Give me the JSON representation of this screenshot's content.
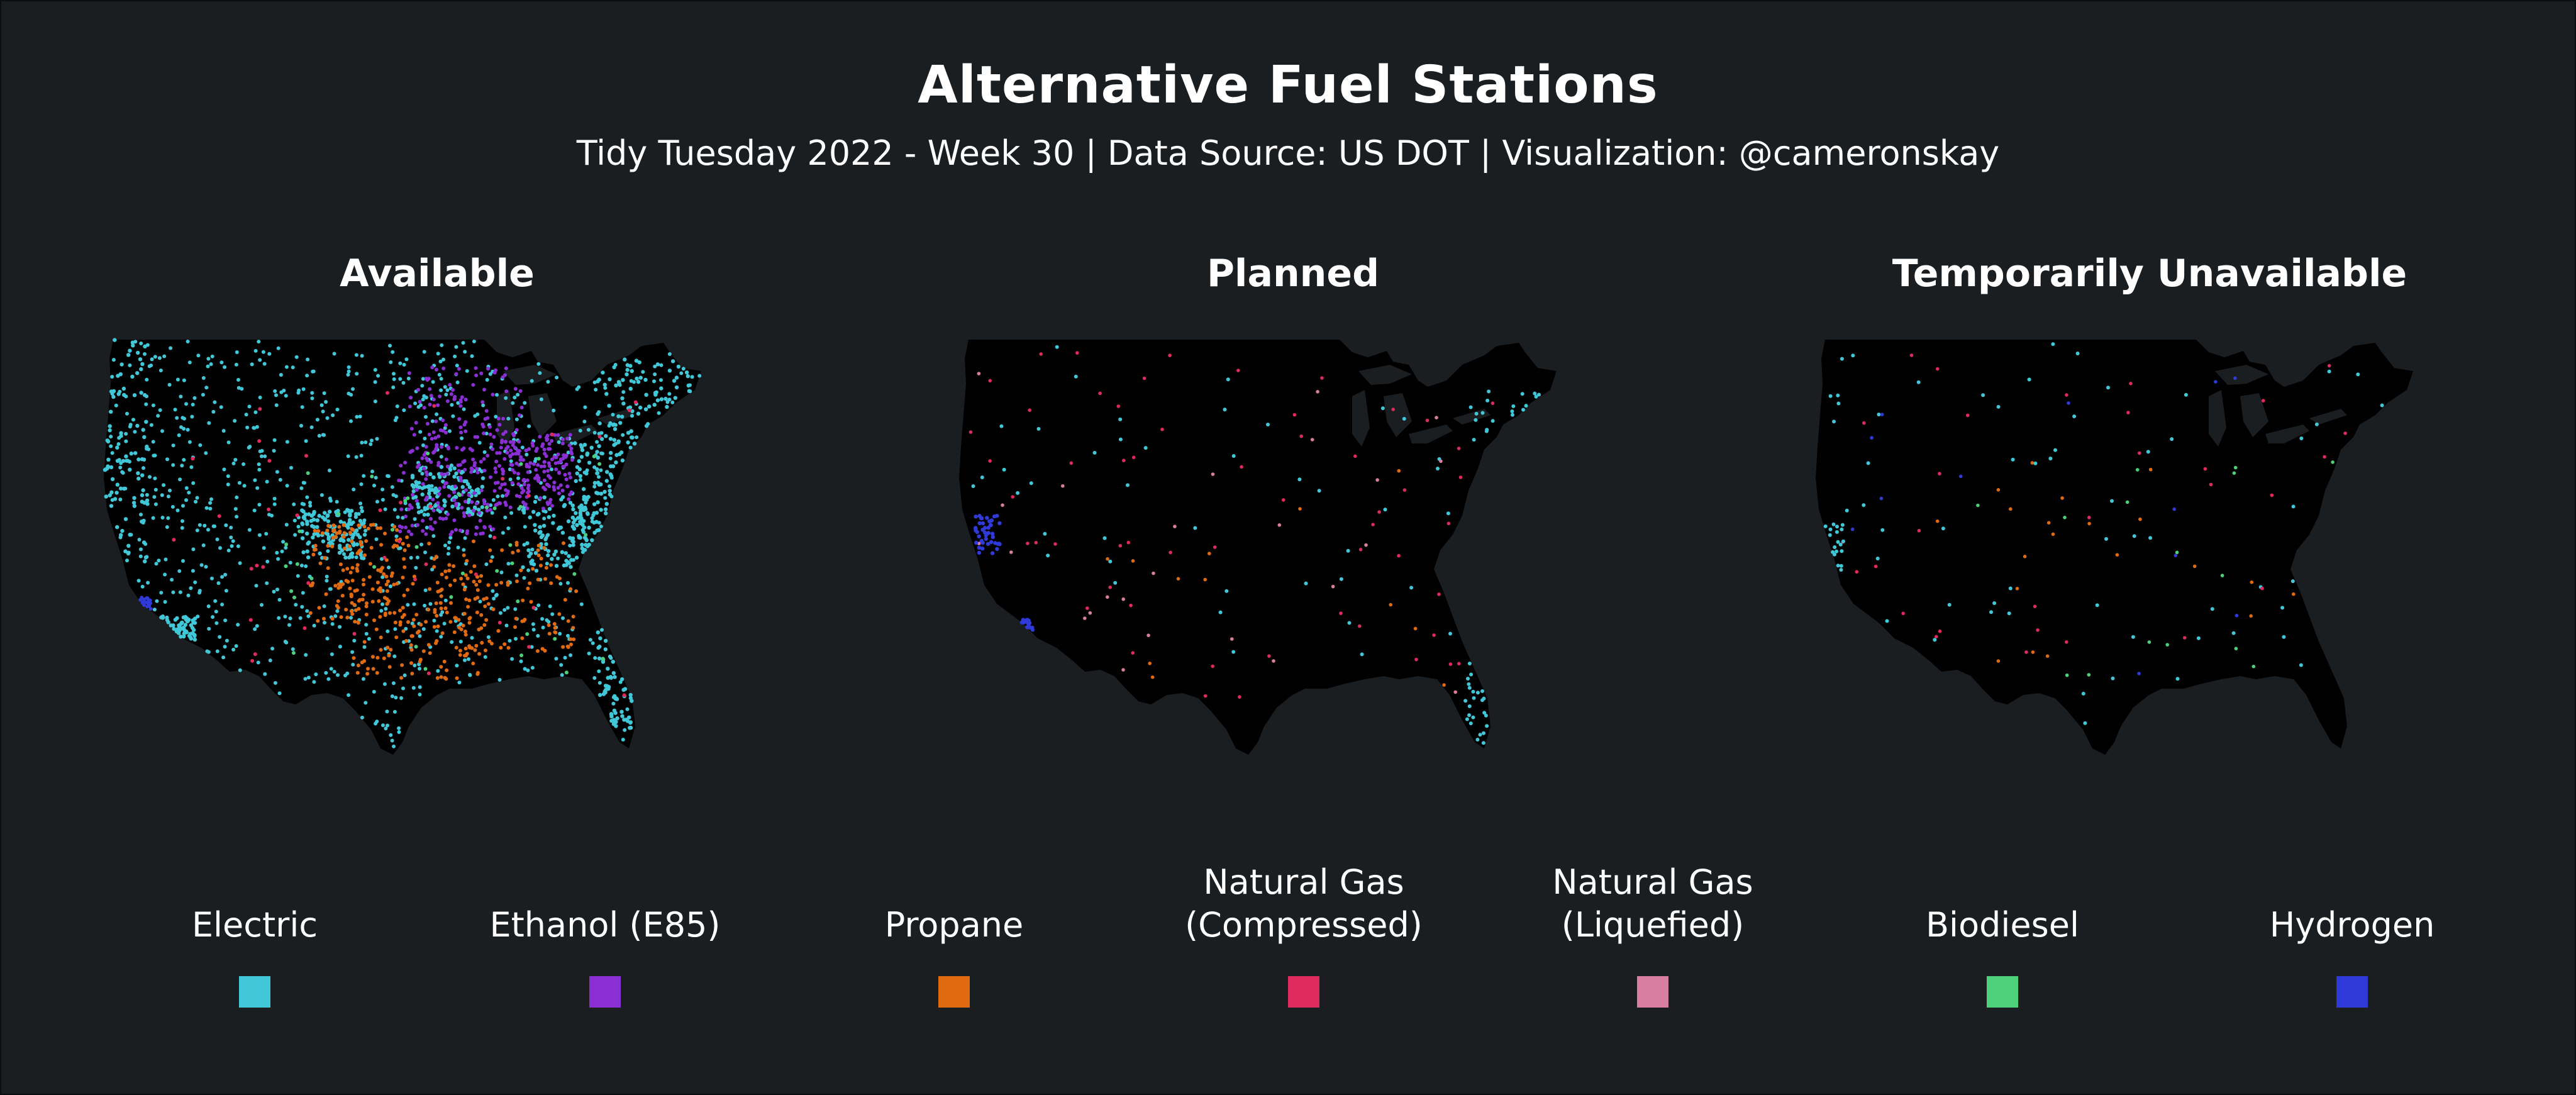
{
  "title": "Alternative Fuel Stations",
  "subtitle": "Tidy Tuesday 2022 - Week 30 | Data Source: US DOT | Visualization: @cameronskay",
  "panels": [
    {
      "title": "Available"
    },
    {
      "title": "Planned"
    },
    {
      "title": "Temporarily Unavailable"
    }
  ],
  "legend": [
    {
      "label": "Electric",
      "color": "#40c8d8"
    },
    {
      "label": "Ethanol (E85)",
      "color": "#8a2fd4"
    },
    {
      "label": "Propane",
      "color": "#e06a0f"
    },
    {
      "label": "Natural Gas\n(Compressed)",
      "color": "#de2a5c"
    },
    {
      "label": "Natural Gas\n(Liquefied)",
      "color": "#d87fa0"
    },
    {
      "label": "Biodiesel",
      "color": "#4cd07a"
    },
    {
      "label": "Hydrogen",
      "color": "#2f3ad8"
    }
  ],
  "colors": {
    "background": "#1b1e21",
    "land": "#000000",
    "text": "#ffffff"
  }
}
